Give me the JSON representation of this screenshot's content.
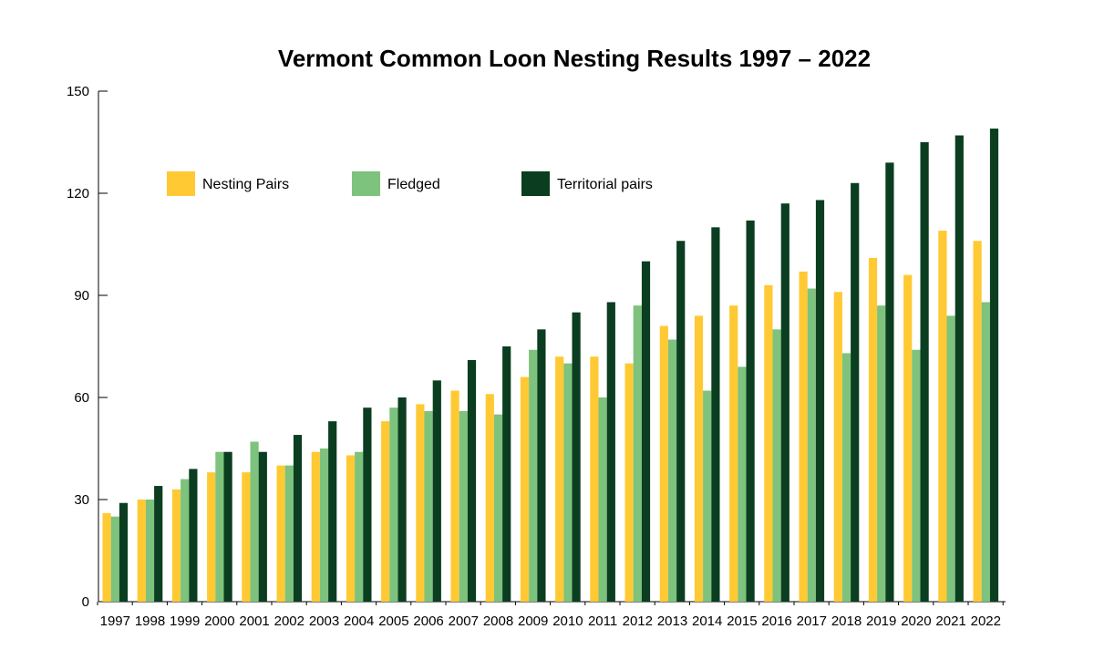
{
  "chart_data": {
    "type": "bar",
    "title": "Vermont Common Loon Nesting Results 1997 – 2022",
    "xlabel": "",
    "ylabel": "",
    "ylim": [
      0,
      150
    ],
    "yticks": [
      "0",
      "30",
      "60",
      "90",
      "120",
      "150"
    ],
    "grid": false,
    "legend_position": "top-left",
    "categories": [
      "1997",
      "1998",
      "1999",
      "2000",
      "2001",
      "2002",
      "2003",
      "2004",
      "2005",
      "2006",
      "2007",
      "2008",
      "2009",
      "2010",
      "2011",
      "2012",
      "2013",
      "2014",
      "2015",
      "2016",
      "2017",
      "2018",
      "2019",
      "2020",
      "2021",
      "2022"
    ],
    "series": [
      {
        "name": "Nesting Pairs",
        "color": "#ffc933",
        "values": [
          26,
          30,
          33,
          38,
          38,
          40,
          44,
          43,
          53,
          58,
          62,
          61,
          66,
          72,
          72,
          70,
          81,
          84,
          87,
          93,
          97,
          91,
          101,
          96,
          109,
          106
        ]
      },
      {
        "name": "Fledged",
        "color": "#7dc27d",
        "values": [
          25,
          30,
          36,
          44,
          47,
          40,
          45,
          44,
          57,
          56,
          56,
          55,
          74,
          70,
          60,
          87,
          77,
          62,
          69,
          80,
          92,
          73,
          87,
          74,
          84,
          88
        ]
      },
      {
        "name": "Territorial pairs",
        "color": "#0b3d20",
        "values": [
          29,
          34,
          39,
          44,
          44,
          49,
          53,
          57,
          60,
          65,
          71,
          75,
          80,
          85,
          88,
          100,
          106,
          110,
          112,
          117,
          118,
          123,
          129,
          135,
          137,
          139
        ]
      }
    ]
  }
}
